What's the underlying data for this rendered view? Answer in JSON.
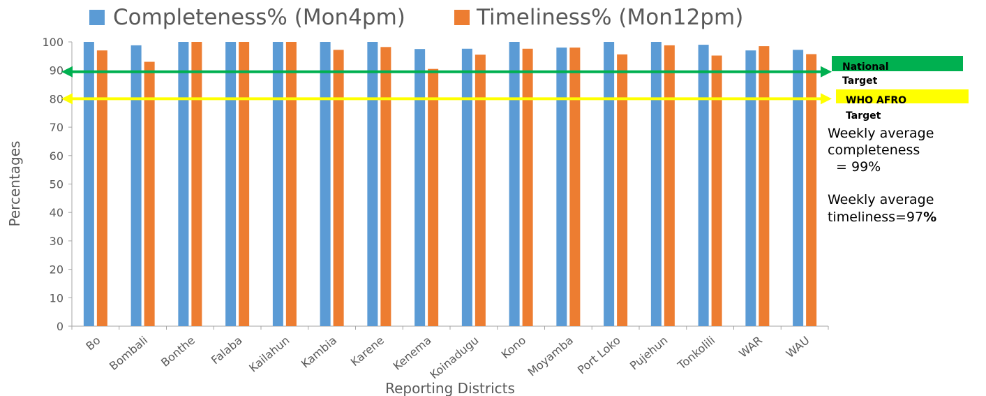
{
  "chart_data": {
    "type": "bar",
    "title": "",
    "xlabel": "Reporting Districts",
    "ylabel": "Percentages",
    "ylim": [
      0,
      100
    ],
    "yticks": [
      0,
      10,
      20,
      30,
      40,
      50,
      60,
      70,
      80,
      90,
      100
    ],
    "grid": false,
    "legend_position": "top",
    "categories": [
      "Bo",
      "Bombali",
      "Bonthe",
      "Falaba",
      "Kailahun",
      "Kambia",
      "Karene",
      "Kenema",
      "Koinadugu",
      "Kono",
      "Moyamba",
      "Port Loko",
      "Pujehun",
      "Tonkolili",
      "WAR",
      "WAU"
    ],
    "series": [
      {
        "name": "Completeness% (Mon4pm)",
        "color": "#5b9bd5",
        "values": [
          100,
          98.8,
          100,
          100,
          100,
          100,
          100,
          97.5,
          97.6,
          100,
          98,
          100,
          100,
          99,
          97,
          97.2
        ]
      },
      {
        "name": "Timeliness% (Mon12pm)",
        "color": "#ed7d31",
        "values": [
          97,
          93,
          100,
          100,
          100,
          97.2,
          98.2,
          90.5,
          95.5,
          97.6,
          98,
          95.6,
          98.8,
          95.2,
          98.5,
          95.7
        ]
      }
    ],
    "reference_lines": [
      {
        "label_line1": "National",
        "label_line2": "Target",
        "value": 89.5,
        "line_color": "#00b050",
        "box_color": "#00b050"
      },
      {
        "label_line1": "WHO AFRO",
        "label_line2": "Target",
        "value": 80,
        "line_color": "#ffff00",
        "box_color": "#ffff00"
      }
    ],
    "annotations": {
      "completeness_lines": [
        "Weekly average",
        "completeness",
        " = 99%"
      ],
      "timeliness_lines": [
        "Weekly average",
        "timeliness=97",
        "%"
      ]
    }
  }
}
